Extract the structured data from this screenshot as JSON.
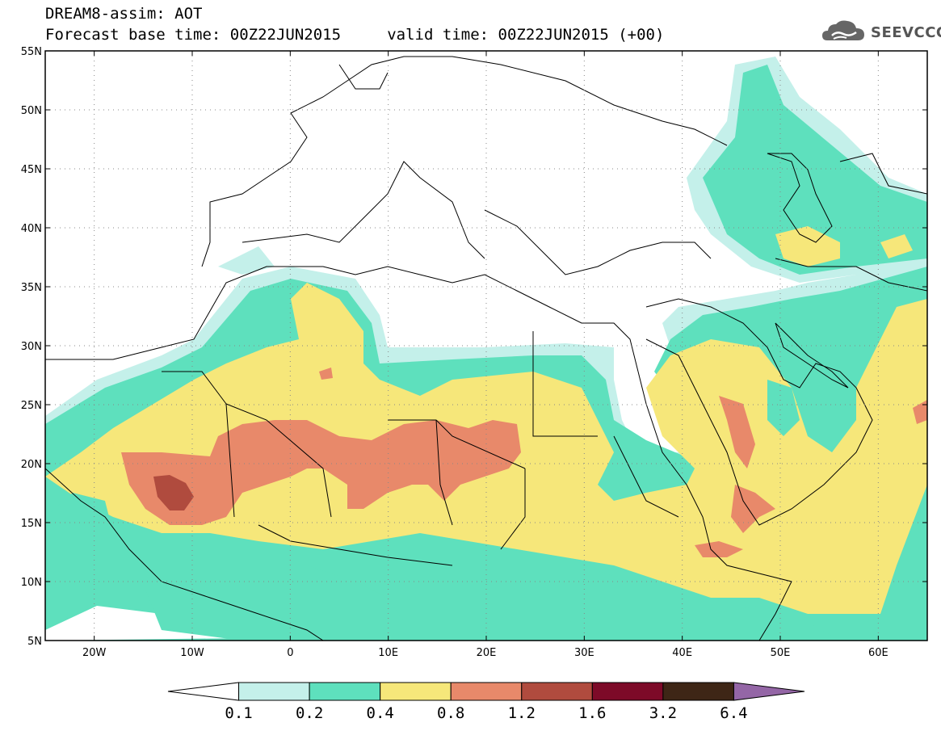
{
  "title": {
    "line1": "DREAM8-assim: AOT",
    "line2": "Forecast base time: 00Z22JUN2015     valid time: 00Z22JUN2015 (+00)"
  },
  "logo": {
    "text": "SEEVCCC",
    "icon": "cloud-icon"
  },
  "map": {
    "lon_range": [
      -25,
      65
    ],
    "lat_range": [
      5,
      55
    ],
    "grid": "dotted",
    "lat_ticks": [
      {
        "value": 55,
        "label": "55N"
      },
      {
        "value": 50,
        "label": "50N"
      },
      {
        "value": 45,
        "label": "45N"
      },
      {
        "value": 40,
        "label": "40N"
      },
      {
        "value": 35,
        "label": "35N"
      },
      {
        "value": 30,
        "label": "30N"
      },
      {
        "value": 25,
        "label": "25N"
      },
      {
        "value": 20,
        "label": "20N"
      },
      {
        "value": 15,
        "label": "15N"
      },
      {
        "value": 10,
        "label": "10N"
      },
      {
        "value": 5,
        "label": "5N"
      }
    ],
    "lon_ticks": [
      {
        "value": -20,
        "label": "20W"
      },
      {
        "value": -10,
        "label": "10W"
      },
      {
        "value": 0,
        "label": "0"
      },
      {
        "value": 10,
        "label": "10E"
      },
      {
        "value": 20,
        "label": "20E"
      },
      {
        "value": 30,
        "label": "30E"
      },
      {
        "value": 40,
        "label": "40E"
      },
      {
        "value": 50,
        "label": "50E"
      },
      {
        "value": 60,
        "label": "60E"
      }
    ]
  },
  "colorbar": {
    "levels": [
      "0.1",
      "0.2",
      "0.4",
      "0.8",
      "1.2",
      "1.6",
      "3.2",
      "6.4"
    ],
    "colors": [
      "#ffffff",
      "#c4f0ea",
      "#5ee0bd",
      "#f6e77a",
      "#e8896a",
      "#b04b3e",
      "#7d0a28",
      "#3e2616",
      "#9466a6"
    ]
  }
}
